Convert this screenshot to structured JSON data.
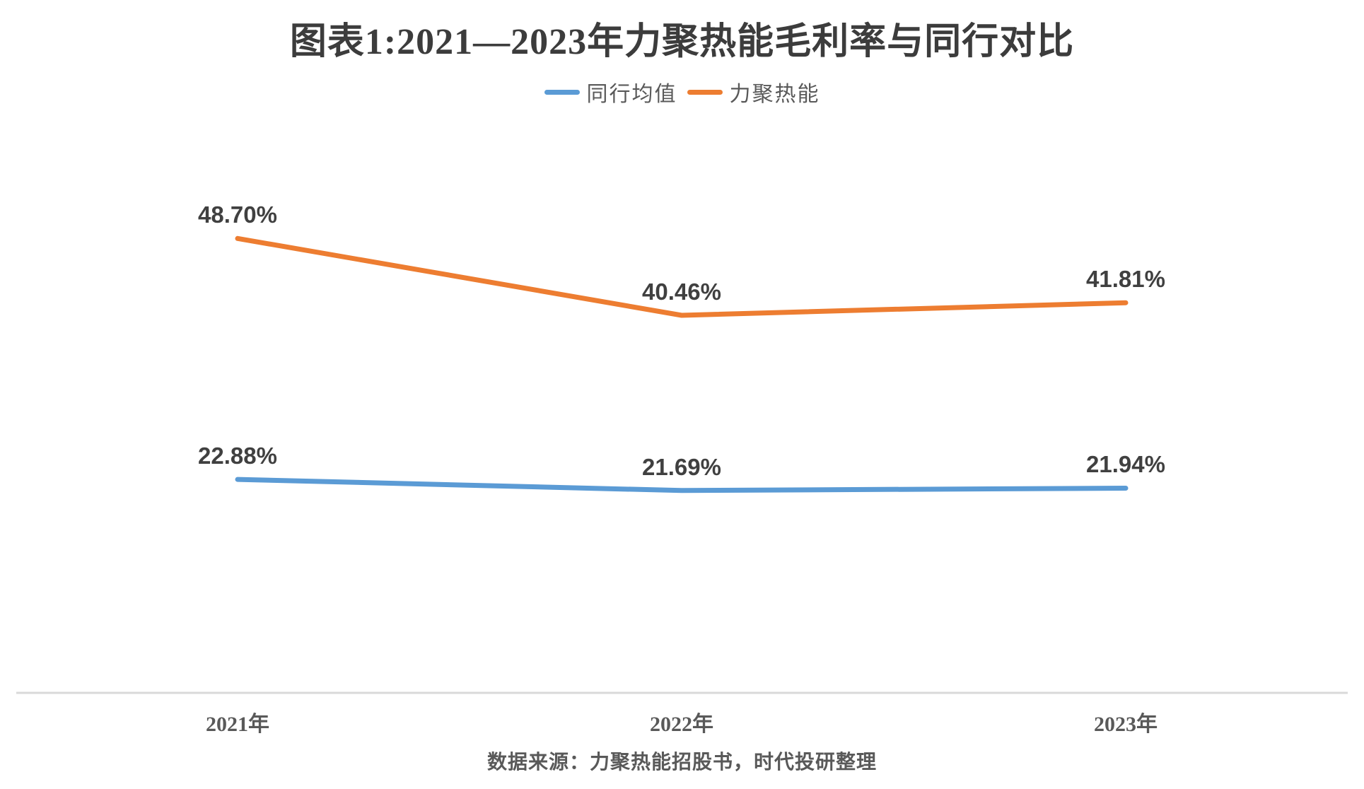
{
  "chart_data": {
    "type": "line",
    "title": "图表1:2021—2023年力聚热能毛利率与同行对比",
    "categories": [
      "2021年",
      "2022年",
      "2023年"
    ],
    "series": [
      {
        "name": "同行均值",
        "color": "#5B9BD5",
        "values": [
          22.88,
          21.69,
          21.94
        ],
        "labels": [
          "22.88%",
          "21.69%",
          "21.94%"
        ]
      },
      {
        "name": "力聚热能",
        "color": "#ED7D31",
        "values": [
          48.7,
          40.46,
          41.81
        ],
        "labels": [
          "48.70%",
          "40.46%",
          "41.81%"
        ]
      }
    ],
    "ylim": [
      0,
      53.8
    ],
    "legend_position": "top",
    "grid": false,
    "baseline_color": "#D9D9D9"
  },
  "source_note": "数据来源：力聚热能招股书，时代投研整理",
  "colors": {
    "title_text": "#3C3C3C",
    "data_label_text": "#404040",
    "axis_label_text": "#595959",
    "axis_line": "#D9D9D9",
    "background": "#FFFFFF"
  }
}
